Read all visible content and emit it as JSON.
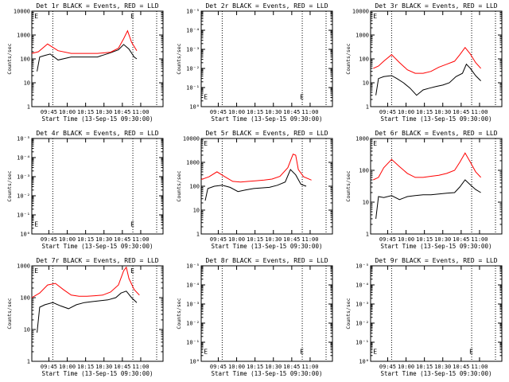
{
  "chart_data": [
    {
      "type": "line",
      "title": "Det 1r BLACK = Events, RED = LLD",
      "xlabel": "Start Time (13-Sep-15 09:30:00)",
      "ylabel": "Counts/sec",
      "x_ticks": [
        "09:45",
        "10:00",
        "10:15",
        "10:30",
        "10:45",
        "11:00"
      ],
      "y_ticks": [
        "1",
        "10",
        "100",
        "1000",
        "10000"
      ],
      "ylim": [
        1,
        10000
      ],
      "yscale": "log",
      "markers": [
        "E",
        "E"
      ],
      "series": [
        {
          "color": "#000000",
          "x": [
            0.04,
            0.06,
            0.1,
            0.14,
            0.2,
            0.3,
            0.4,
            0.5,
            0.6,
            0.66,
            0.7,
            0.74,
            0.78,
            0.8
          ],
          "y": [
            30,
            120,
            140,
            160,
            90,
            120,
            120,
            120,
            180,
            240,
            400,
            260,
            120,
            100
          ]
        },
        {
          "color": "#ff0000",
          "x": [
            0.0,
            0.05,
            0.12,
            0.2,
            0.3,
            0.4,
            0.5,
            0.6,
            0.66,
            0.7,
            0.73,
            0.76,
            0.8
          ],
          "y": [
            170,
            200,
            420,
            220,
            170,
            170,
            170,
            190,
            280,
            700,
            1500,
            500,
            220
          ]
        }
      ]
    },
    {
      "type": "line",
      "title": "Det 2r BLACK = Events, RED = LLD",
      "xlabel": "Start Time (13-Sep-15 09:30:00)",
      "ylabel": "Counts/sec",
      "x_ticks": [
        "09:45",
        "10:00",
        "10:15",
        "10:30",
        "10:45",
        "11:00"
      ],
      "y_ticks": [
        "10⁰",
        "10⁻¹",
        "10⁻²",
        "10⁻³",
        "10⁻⁴",
        "10⁻⁵"
      ],
      "yscale": "log",
      "markers": [
        "E",
        "E"
      ],
      "series": []
    },
    {
      "type": "line",
      "title": "Det 3r BLACK = Events, RED = LLD",
      "xlabel": "Start Time (13-Sep-15 09:30:00)",
      "ylabel": "Counts/sec",
      "x_ticks": [
        "09:45",
        "10:00",
        "10:15",
        "10:30",
        "10:45",
        "11:00"
      ],
      "y_ticks": [
        "1",
        "10",
        "100",
        "1000",
        "10000"
      ],
      "ylim": [
        1,
        10000
      ],
      "yscale": "log",
      "markers": [
        "E"
      ],
      "series": [
        {
          "color": "#000000",
          "x": [
            0.04,
            0.06,
            0.1,
            0.16,
            0.2,
            0.25,
            0.3,
            0.35,
            0.4,
            0.45,
            0.5,
            0.55,
            0.6,
            0.65,
            0.7,
            0.73,
            0.76,
            0.8,
            0.84
          ],
          "y": [
            3,
            15,
            18,
            20,
            15,
            10,
            6,
            3,
            5,
            6,
            7,
            8,
            10,
            18,
            25,
            60,
            40,
            20,
            12
          ]
        },
        {
          "color": "#ff0000",
          "x": [
            0.02,
            0.06,
            0.1,
            0.16,
            0.22,
            0.28,
            0.34,
            0.4,
            0.46,
            0.52,
            0.58,
            0.64,
            0.68,
            0.72,
            0.76,
            0.8,
            0.84
          ],
          "y": [
            40,
            50,
            80,
            150,
            70,
            35,
            25,
            25,
            30,
            45,
            60,
            80,
            150,
            300,
            160,
            70,
            40
          ]
        }
      ]
    },
    {
      "type": "line",
      "title": "Det 4r BLACK = Events, RED = LLD",
      "xlabel": "Start Time (13-Sep-15 09:30:00)",
      "ylabel": "Counts/sec",
      "x_ticks": [
        "09:45",
        "10:00",
        "10:15",
        "10:30",
        "10:45",
        "11:00"
      ],
      "y_ticks": [
        "10⁰",
        "10⁻¹",
        "10⁻²",
        "10⁻³",
        "10⁻⁴",
        "10⁻⁵"
      ],
      "yscale": "log",
      "markers": [
        "E",
        "E"
      ],
      "series": []
    },
    {
      "type": "line",
      "title": "Det 5r BLACK = Events, RED = LLD",
      "xlabel": "Start Time (13-Sep-15 09:30:00)",
      "ylabel": "Counts/sec",
      "x_ticks": [
        "09:45",
        "10:00",
        "10:15",
        "10:30",
        "10:45",
        "11:00"
      ],
      "y_ticks": [
        "1",
        "10",
        "100",
        "1000",
        "10000"
      ],
      "ylim": [
        1,
        10000
      ],
      "yscale": "log",
      "markers": [
        "E"
      ],
      "series": [
        {
          "color": "#000000",
          "x": [
            0.03,
            0.05,
            0.1,
            0.16,
            0.22,
            0.28,
            0.34,
            0.4,
            0.46,
            0.52,
            0.58,
            0.64,
            0.68,
            0.72,
            0.76,
            0.8
          ],
          "y": [
            25,
            80,
            100,
            110,
            90,
            60,
            70,
            80,
            85,
            90,
            110,
            150,
            500,
            300,
            120,
            100
          ]
        },
        {
          "color": "#ff0000",
          "x": [
            0.0,
            0.06,
            0.12,
            0.18,
            0.24,
            0.3,
            0.36,
            0.42,
            0.48,
            0.54,
            0.6,
            0.66,
            0.7,
            0.72,
            0.74,
            0.78,
            0.84
          ],
          "y": [
            190,
            250,
            400,
            250,
            160,
            150,
            160,
            170,
            180,
            200,
            260,
            600,
            2200,
            2000,
            500,
            250,
            180
          ]
        }
      ]
    },
    {
      "type": "line",
      "title": "Det 6r BLACK = Events, RED = LLD",
      "xlabel": "Start Time (13-Sep-15 09:30:00)",
      "ylabel": "Counts/sec",
      "x_ticks": [
        "09:45",
        "10:00",
        "10:15",
        "10:30",
        "10:45",
        "11:00"
      ],
      "y_ticks": [
        "1",
        "10",
        "100",
        "1000"
      ],
      "ylim": [
        1,
        1000
      ],
      "yscale": "log",
      "markers": [
        "E"
      ],
      "series": [
        {
          "color": "#000000",
          "x": [
            0.04,
            0.06,
            0.1,
            0.16,
            0.22,
            0.28,
            0.34,
            0.4,
            0.46,
            0.52,
            0.58,
            0.64,
            0.68,
            0.72,
            0.76,
            0.8,
            0.84
          ],
          "y": [
            3,
            15,
            14,
            16,
            12,
            15,
            16,
            17,
            17,
            18,
            19,
            20,
            30,
            50,
            35,
            25,
            20
          ]
        },
        {
          "color": "#ff0000",
          "x": [
            0.02,
            0.06,
            0.1,
            0.16,
            0.22,
            0.28,
            0.34,
            0.4,
            0.46,
            0.52,
            0.58,
            0.64,
            0.68,
            0.72,
            0.76,
            0.8,
            0.84
          ],
          "y": [
            50,
            60,
            120,
            220,
            130,
            80,
            60,
            60,
            65,
            70,
            80,
            100,
            180,
            350,
            180,
            90,
            60
          ]
        }
      ]
    },
    {
      "type": "line",
      "title": "Det 7r BLACK = Events, RED = LLD",
      "xlabel": "Start Time (13-Sep-15 09:30:00)",
      "ylabel": "Counts/sec",
      "x_ticks": [
        "09:45",
        "10:00",
        "10:15",
        "10:30",
        "10:45",
        "11:00"
      ],
      "y_ticks": [
        "1",
        "10",
        "100",
        "1000"
      ],
      "ylim": [
        1,
        1000
      ],
      "yscale": "log",
      "markers": [
        "E",
        "E"
      ],
      "series": [
        {
          "color": "#000000",
          "x": [
            0.04,
            0.06,
            0.1,
            0.16,
            0.22,
            0.28,
            0.34,
            0.4,
            0.46,
            0.52,
            0.58,
            0.64,
            0.68,
            0.72,
            0.76,
            0.8
          ],
          "y": [
            8,
            50,
            60,
            70,
            55,
            45,
            60,
            70,
            75,
            80,
            85,
            100,
            140,
            160,
            100,
            70
          ]
        },
        {
          "color": "#ff0000",
          "x": [
            0.0,
            0.06,
            0.12,
            0.18,
            0.24,
            0.3,
            0.36,
            0.42,
            0.48,
            0.54,
            0.6,
            0.66,
            0.7,
            0.72,
            0.74,
            0.78,
            0.82
          ],
          "y": [
            100,
            140,
            250,
            280,
            180,
            120,
            110,
            110,
            115,
            120,
            150,
            250,
            700,
            900,
            400,
            180,
            120
          ]
        }
      ]
    },
    {
      "type": "line",
      "title": "Det 8r BLACK = Events, RED = LLD",
      "xlabel": "Start Time (13-Sep-15 09:30:00)",
      "ylabel": "Counts/sec",
      "x_ticks": [
        "09:45",
        "10:00",
        "10:15",
        "10:30",
        "10:45",
        "11:00"
      ],
      "y_ticks": [
        "10⁰",
        "10⁻¹",
        "10⁻²",
        "10⁻³",
        "10⁻⁴",
        "10⁻⁵"
      ],
      "yscale": "log",
      "markers": [
        "E",
        "E"
      ],
      "series": []
    },
    {
      "type": "line",
      "title": "Det 9r BLACK = Events, RED = LLD",
      "xlabel": "Start Time (13-Sep-15 09:30:00)",
      "ylabel": "Counts/sec",
      "x_ticks": [
        "09:45",
        "10:00",
        "10:15",
        "10:30",
        "10:45",
        "11:00"
      ],
      "y_ticks": [
        "10⁰",
        "10⁻¹",
        "10⁻²",
        "10⁻³",
        "10⁻⁴",
        "10⁻⁵"
      ],
      "yscale": "log",
      "markers": [
        "E",
        "E"
      ],
      "series": []
    }
  ]
}
